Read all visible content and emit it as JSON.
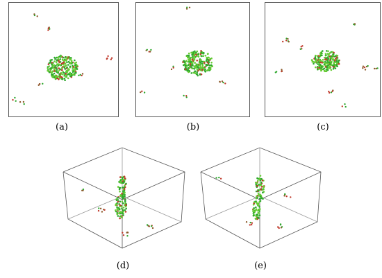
{
  "panels": [
    {
      "id": "a",
      "label": "(a)"
    },
    {
      "id": "b",
      "label": "(b)"
    },
    {
      "id": "c",
      "label": "(c)"
    },
    {
      "id": "d",
      "label": "(d)"
    },
    {
      "id": "e",
      "label": "(e)"
    }
  ],
  "colors": {
    "atom_green": "#2ea82e",
    "atom_light_green": "#66cc33",
    "atom_red": "#c0392b",
    "atom_brown": "#8b5a2b",
    "frame": "#555555",
    "shadow_blue": "#d9e8f5"
  }
}
